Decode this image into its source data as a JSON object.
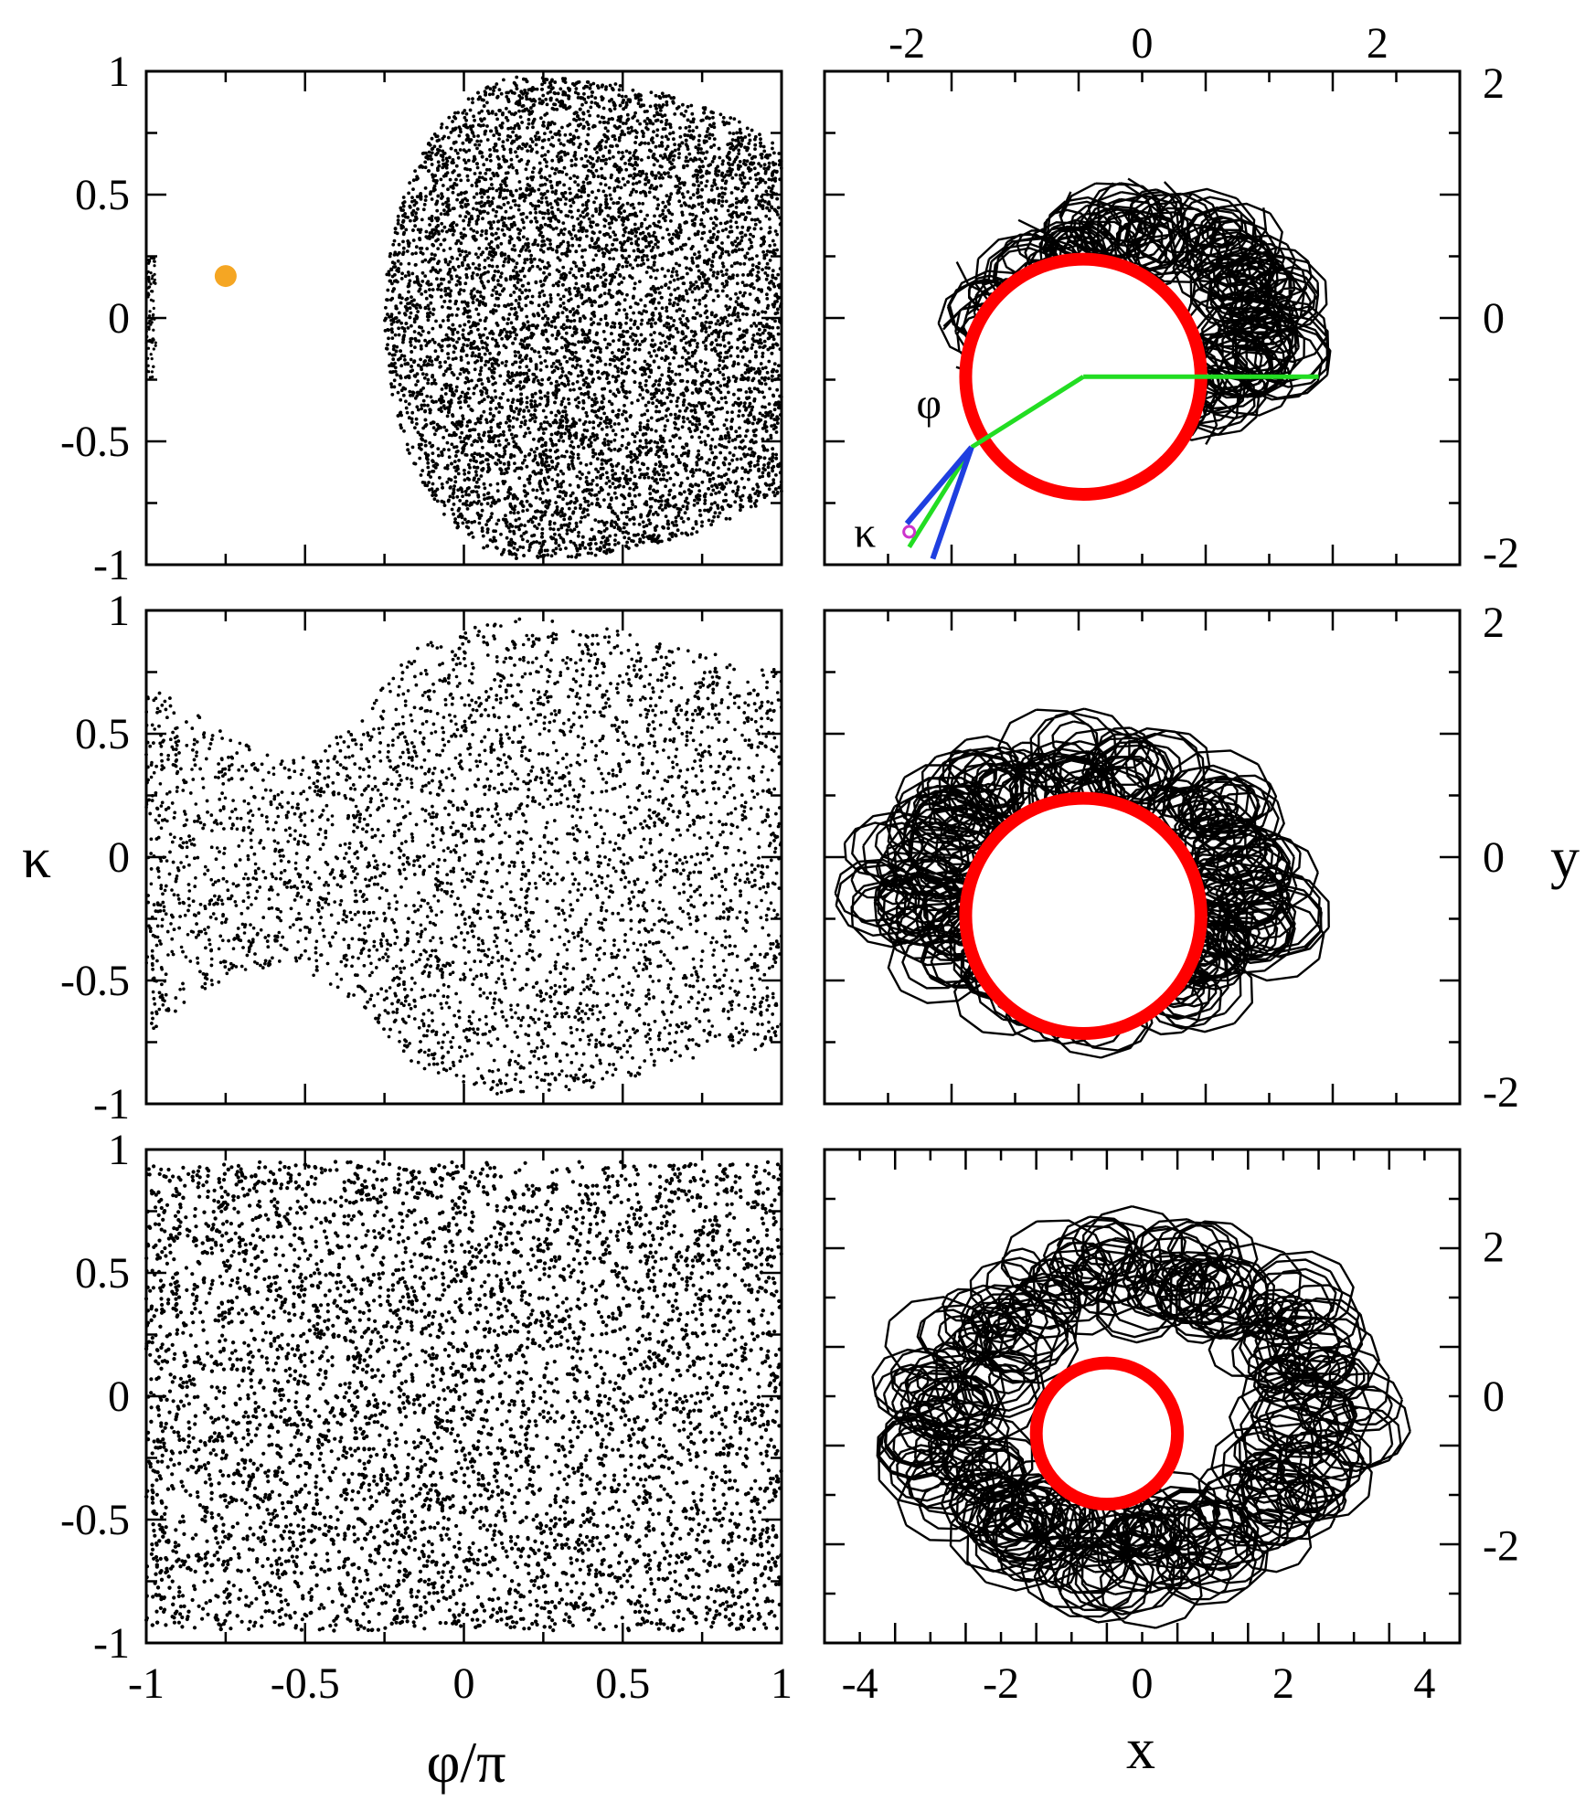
{
  "figure": {
    "left_xlabel": "φ/π",
    "left_ylabel": "κ",
    "right_xlabel": "x",
    "right_ylabel": "y",
    "annotation_phi": "φ",
    "annotation_kappa": "κ"
  },
  "chart_data": [
    {
      "type": "scatter",
      "panel": "top-left",
      "xlim": [
        -1,
        1
      ],
      "ylim": [
        -1,
        1
      ],
      "xticks": [
        "-1",
        "-0.5",
        "0",
        "0.5",
        "1"
      ],
      "yticks": [
        "-1",
        "-0.5",
        "0",
        "0.5",
        "1"
      ],
      "regions": [
        {
          "name": "",
          "x_left_edge": -0.25,
          "x_right_edge": 1.0,
          "center_x": 0.2,
          "kappa_top": 0.98,
          "kappa_bottom": -0.98
        },
        {
          "name": "",
          "x_range": [
            -1.0,
            -0.97
          ],
          "kappa_range": [
            -0.25,
            0.25
          ]
        }
      ],
      "highlight_point": {
        "x": -0.75,
        "y": 0.17,
        "color": "#f5a623"
      },
      "point_color": "#000000"
    },
    {
      "type": "scatter",
      "panel": "middle-left",
      "xlim": [
        -1,
        1
      ],
      "ylim": [
        -1,
        1
      ],
      "yticks": [
        "-1",
        "-0.5",
        "0",
        "0.5",
        "1"
      ],
      "envelope": [
        {
          "x": -1.0,
          "upper": 0.72,
          "lower": -0.72
        },
        {
          "x": -0.75,
          "upper": 0.5,
          "lower": -0.5
        },
        {
          "x": -0.55,
          "upper": 0.38,
          "lower": -0.42
        },
        {
          "x": -0.35,
          "upper": 0.55,
          "lower": -0.58
        },
        {
          "x": -0.15,
          "upper": 0.85,
          "lower": -0.85
        },
        {
          "x": 0.1,
          "upper": 0.97,
          "lower": -0.96
        },
        {
          "x": 0.4,
          "upper": 0.95,
          "lower": -0.95
        },
        {
          "x": 0.7,
          "upper": 0.85,
          "lower": -0.82
        },
        {
          "x": 1.0,
          "upper": 0.77,
          "lower": -0.77
        }
      ],
      "point_color": "#000000"
    },
    {
      "type": "scatter",
      "panel": "bottom-left",
      "xlim": [
        -1,
        1
      ],
      "ylim": [
        -1,
        1
      ],
      "xticks": [
        "-1",
        "-0.5",
        "0",
        "0.5",
        "1"
      ],
      "yticks": [
        "-1",
        "-0.5",
        "0",
        "0.5",
        "1"
      ],
      "band": {
        "x_range": [
          -1,
          1
        ],
        "kappa_top": 0.95,
        "kappa_bottom": -0.95
      },
      "point_color": "#000000"
    },
    {
      "type": "line",
      "panel": "top-right",
      "xlim": [
        -2.7,
        2.7
      ],
      "ylim": [
        -2.1,
        2.1
      ],
      "xticks_top": [
        "-2",
        "0",
        "2"
      ],
      "yticks_right": [
        "-2",
        "0",
        "2"
      ],
      "circle": {
        "cx": -0.5,
        "cy": -0.5,
        "r": 1.0,
        "color": "#ff0000"
      },
      "trajectory_region": {
        "x_range": [
          -1.75,
          1.75
        ],
        "y_range": [
          -1.15,
          1.2
        ]
      },
      "green_lines": [
        [
          [
            -0.5,
            -0.5
          ],
          [
            1.5,
            -0.5
          ]
        ],
        [
          [
            -0.5,
            -0.5
          ],
          [
            -1.45,
            -1.1
          ]
        ],
        [
          [
            -1.45,
            -1.1
          ],
          [
            -1.98,
            -1.95
          ]
        ]
      ],
      "blue_lines": [
        [
          [
            -1.45,
            -1.1
          ],
          [
            -2.0,
            -1.75
          ]
        ],
        [
          [
            -1.45,
            -1.1
          ],
          [
            -1.78,
            -2.05
          ]
        ]
      ],
      "magenta_marker": {
        "x": -1.98,
        "y": -1.82
      },
      "line_color": "#000000"
    },
    {
      "type": "line",
      "panel": "middle-right",
      "xlim": [
        -2.7,
        2.7
      ],
      "ylim": [
        -2.1,
        2.1
      ],
      "yticks_right": [
        "-2",
        "0",
        "2"
      ],
      "circle": {
        "cx": -0.5,
        "cy": -0.5,
        "r": 1.0,
        "color": "#ff0000"
      },
      "trajectory_region": {
        "cx": -0.5,
        "cy": -0.2,
        "rx": 2.45,
        "ry": 1.6
      },
      "line_color": "#000000"
    },
    {
      "type": "line",
      "panel": "bottom-right",
      "xlim": [
        -4.5,
        4.5
      ],
      "ylim": [
        -3.3,
        3.3
      ],
      "xticks": [
        "-4",
        "-2",
        "0",
        "2",
        "4"
      ],
      "yticks_right": [
        "-2",
        "0",
        "2"
      ],
      "circle": {
        "cx": -0.5,
        "cy": -0.5,
        "r": 1.0,
        "color": "#ff0000"
      },
      "trajectory_region": {
        "cx": -0.1,
        "cy": -0.2,
        "rx": 4.3,
        "ry": 3.05
      },
      "line_color": "#000000"
    }
  ]
}
